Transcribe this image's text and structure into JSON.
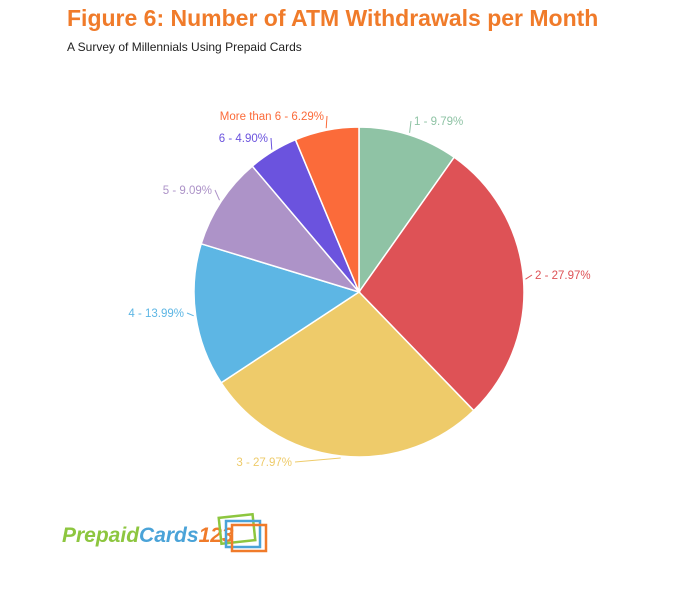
{
  "header": {
    "title": "Figure 6: Number of ATM Withdrawals per Month",
    "subtitle": "A Survey of Millennials Using Prepaid Cards"
  },
  "chart_data": {
    "type": "pie",
    "title": "Figure 6: Number of ATM Withdrawals per Month",
    "subtitle": "A Survey of Millennials Using Prepaid Cards",
    "slices": [
      {
        "label": "1 - 9.79%",
        "category": "1",
        "value": 9.79,
        "color": "#8fc3a5"
      },
      {
        "label": "2 - 27.97%",
        "category": "2",
        "value": 27.97,
        "color": "#de5256"
      },
      {
        "label": "3 - 27.97%",
        "category": "3",
        "value": 27.97,
        "color": "#eecb6a"
      },
      {
        "label": "4 - 13.99%",
        "category": "4",
        "value": 13.99,
        "color": "#5db6e4"
      },
      {
        "label": "5 - 9.09%",
        "category": "5",
        "value": 9.09,
        "color": "#ad93c8"
      },
      {
        "label": "6 - 4.90%",
        "category": "6",
        "value": 4.9,
        "color": "#6b53de"
      },
      {
        "label": "More than 6 - 6.29%",
        "category": "More than 6",
        "value": 6.29,
        "color": "#fb6b3a"
      }
    ]
  },
  "logo": {
    "part1": "Prepaid",
    "part2": "Cards",
    "part3": "123"
  }
}
